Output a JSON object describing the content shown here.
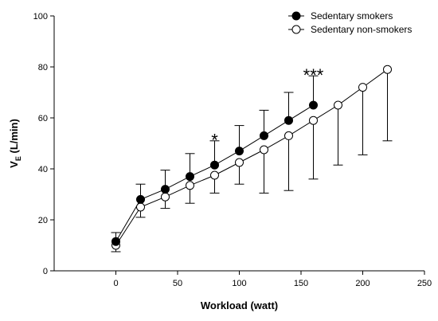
{
  "chart_data": {
    "type": "line",
    "xlabel": "Workload (watt)",
    "ylabel_main": "V",
    "ylabel_sub": "E",
    "ylabel_unit": " (L/min)",
    "xlim": [
      -50,
      250
    ],
    "ylim": [
      0,
      100
    ],
    "xticks": [
      0,
      50,
      100,
      150,
      200,
      250
    ],
    "yticks": [
      0,
      20,
      40,
      60,
      80,
      100
    ],
    "grid": false,
    "legend_position": "top-right",
    "series": [
      {
        "name": "Sedentary smokers",
        "marker": "filled",
        "color": "#000000",
        "x": [
          0,
          20,
          40,
          60,
          80,
          100,
          120,
          140,
          160
        ],
        "y": [
          11.5,
          28,
          32,
          37,
          41.5,
          47,
          53,
          59,
          65
        ],
        "err_upper": [
          15,
          34,
          39.5,
          46,
          51,
          57,
          63,
          70,
          76.5
        ],
        "err_lower": [
          8.5,
          22,
          26,
          29,
          32,
          36,
          41,
          46,
          52
        ]
      },
      {
        "name": "Sedentary non-smokers",
        "marker": "open",
        "color": "#000000",
        "x": [
          0,
          20,
          40,
          60,
          80,
          100,
          120,
          140,
          160,
          180,
          200,
          220
        ],
        "y": [
          10,
          25,
          29,
          33.5,
          37.5,
          42.5,
          47.5,
          53,
          59,
          65,
          72,
          79
        ],
        "err_upper": [
          13,
          30,
          34,
          40,
          45,
          51,
          57,
          63,
          69,
          75,
          82,
          89
        ],
        "err_lower": [
          7.5,
          21,
          24.5,
          26.5,
          30.5,
          34,
          30.5,
          31.5,
          36,
          41.5,
          45.5,
          51
        ]
      }
    ],
    "annotations": [
      {
        "text": "*",
        "x": 80,
        "y": 52
      },
      {
        "text": "***",
        "x": 160,
        "y": 77.5
      }
    ]
  }
}
